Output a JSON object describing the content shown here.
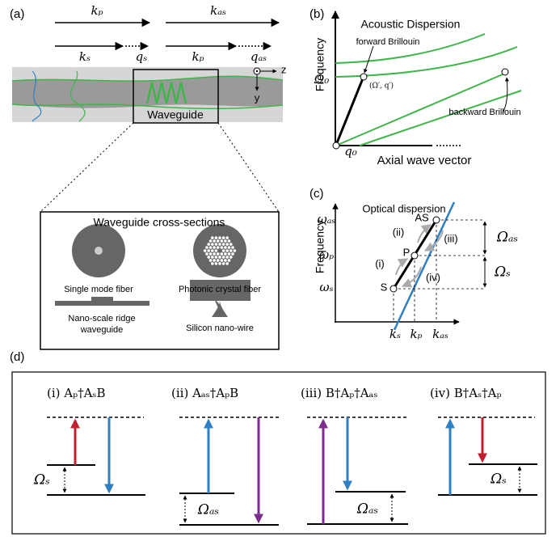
{
  "panel_a": {
    "label": "(a)",
    "k_p_top": "kₚ",
    "k_as_top": "kₐₛ",
    "k_s": "kₛ",
    "q_s": "qₛ",
    "k_p_right": "kₚ",
    "q_as": "qₐₛ",
    "axis_z": "z",
    "axis_y": "y",
    "waveguide": "Waveguide",
    "inset": {
      "title": "Waveguide cross-sections",
      "single_mode": "Single mode fiber",
      "photonic": "Photonic crystal fiber",
      "ridge_1": "Nano-scale ridge",
      "ridge_2": "waveguide",
      "nanowire": "Silicon nano-wire"
    }
  },
  "panel_b": {
    "label": "(b)",
    "y_axis": "Frequency",
    "x_axis": "Axial wave vector",
    "omega0": "Ω₀",
    "q0": "q₀",
    "title": "Acoustic Dispersion",
    "forward": "forward Brillouin",
    "point": "(Ω′, q′)",
    "backward": "backward Brillouin"
  },
  "panel_c": {
    "label": "(c)",
    "y_axis": "Frequency",
    "title": "Optical dispersion",
    "w_as": "ωₐₛ",
    "w_p": "ωₚ",
    "w_s": "ωₛ",
    "k_s": "kₛ",
    "k_p": "kₚ",
    "k_as": "kₐₛ",
    "AS": "AS",
    "P": "P",
    "S": "S",
    "i": "(i)",
    "ii": "(ii)",
    "iii": "(iii)",
    "iv": "(iv)",
    "Omega_as": "Ωₐₛ",
    "Omega_s": "Ωₛ"
  },
  "panel_d": {
    "label": "(d)",
    "titles": [
      "(i) Aₚ†AₛB",
      "(ii) Aₐₛ†AₚB",
      "(iii) B†Aₚ†Aₐₛ",
      "(iv) B†Aₛ†Aₚ"
    ],
    "gaps": [
      "Ωₛ",
      "Ωₐₛ",
      "Ωₐₛ",
      "Ωₛ"
    ]
  }
}
